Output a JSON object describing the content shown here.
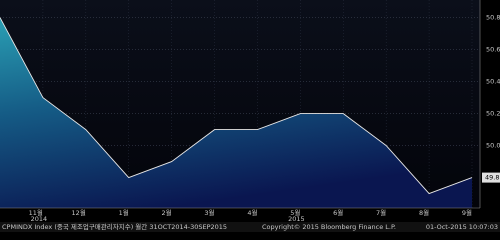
{
  "chart_data": {
    "type": "area",
    "categories": [
      null,
      "11월",
      "12월",
      "1월",
      "2월",
      "3월",
      "4월",
      "5월",
      "6월",
      "7월",
      "8월",
      "9월"
    ],
    "x_year_labels": [
      "2014",
      "2015"
    ],
    "values": [
      50.8,
      50.3,
      50.1,
      49.8,
      49.9,
      50.1,
      50.1,
      50.2,
      50.2,
      50.0,
      49.7,
      49.8
    ],
    "ylim": [
      49.61,
      50.91
    ],
    "yticks": [
      {
        "value": 50,
        "label": "50.0"
      },
      50.2,
      50.4,
      50.6,
      50.8
    ],
    "grid": true,
    "color": "#e8e8e8",
    "footer": [
      "CPMINDX Index (중국 제조업구매관리자지수) 월간 31OCT2014-30SEP2015",
      "Copyright© 2015 Bloomberg Finance L.P.",
      "01-Oct-2015 10:07:03"
    ]
  }
}
